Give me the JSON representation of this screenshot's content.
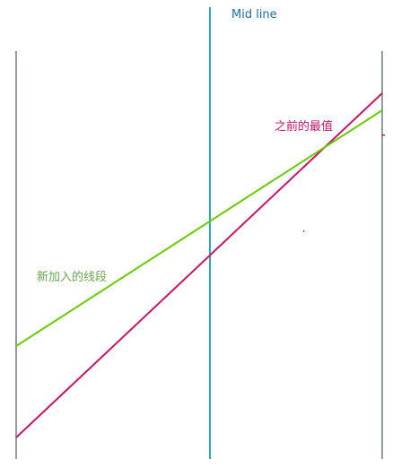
{
  "labels": {
    "mid_line": "Mid line",
    "previous_best": "之前的最值",
    "new_segment": "新加入的线段"
  },
  "colors": {
    "boundary": "#6f7f7f",
    "mid_line": "#2aa6b8",
    "mid_label": "#1b6fa8",
    "previous_best": "#c8146a",
    "new_segment": "#66cc00",
    "new_label": "#6aa84f"
  }
}
